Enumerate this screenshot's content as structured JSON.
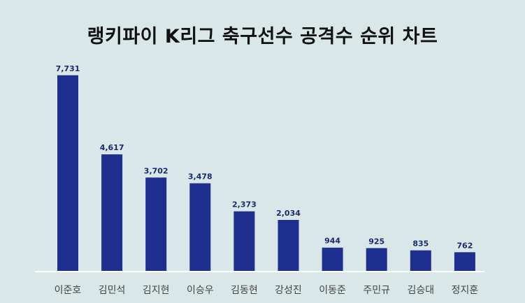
{
  "chart_data": {
    "type": "bar",
    "title": "랭키파이 K리그 축구선수 공격수 순위 차트",
    "categories": [
      "이준호",
      "김민석",
      "김지현",
      "이승우",
      "김동현",
      "강성진",
      "이동준",
      "주민규",
      "김승대",
      "정지훈"
    ],
    "values": [
      7731,
      4617,
      3702,
      3478,
      2373,
      2034,
      944,
      925,
      835,
      762
    ],
    "value_labels": [
      "7,731",
      "4,617",
      "3,702",
      "3,478",
      "2,373",
      "2,034",
      "944",
      "925",
      "835",
      "762"
    ],
    "ylim": [
      0,
      8000
    ],
    "grid": false,
    "legend": "none",
    "xlabel": "",
    "ylabel": ""
  },
  "colors": {
    "bar": "#1f2f8f",
    "background": "#d9e7e8",
    "baseline": "#ffffff"
  }
}
